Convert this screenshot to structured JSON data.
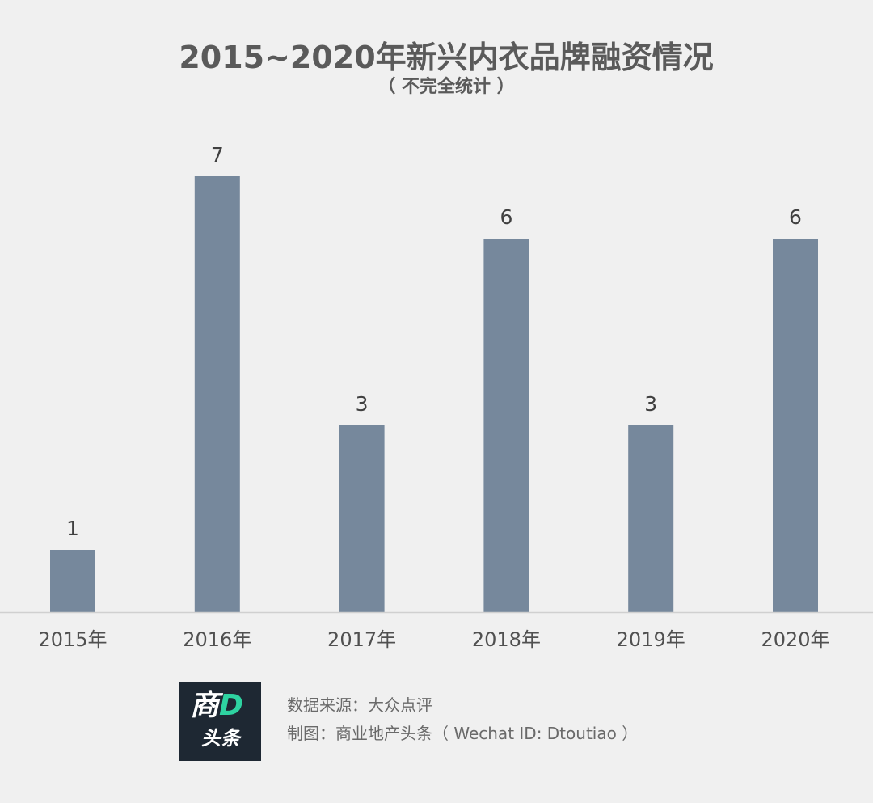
{
  "chart_data": {
    "type": "bar",
    "title": "2015~2020年新兴内衣品牌融资情况",
    "subtitle": "（ 不完全统计 ）",
    "categories": [
      "2015年",
      "2016年",
      "2017年",
      "2018年",
      "2019年",
      "2020年"
    ],
    "values": [
      1,
      7,
      3,
      6,
      3,
      6
    ],
    "data_labels": [
      "1",
      "7",
      "3",
      "6",
      "3",
      "6"
    ],
    "xlabel": "",
    "ylabel": "",
    "ylim": [
      0,
      7
    ],
    "grid": false,
    "bar_color": "#76889c",
    "axis_color": "#d0d0d0"
  },
  "footer": {
    "logo_top": "商",
    "logo_top_accent": "D",
    "logo_bottom": "头条",
    "source": "数据来源：大众点评",
    "credit": "制图：商业地产头条（ Wechat ID: Dtoutiao ）"
  }
}
